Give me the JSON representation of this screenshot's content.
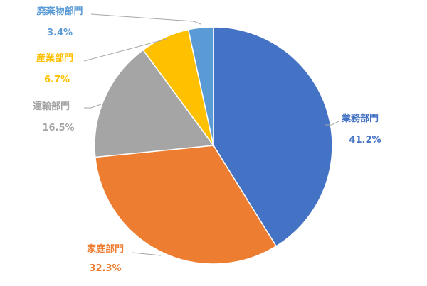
{
  "chart_data": {
    "type": "pie",
    "title": "",
    "start_angle_deg": 0,
    "direction": "clockwise",
    "slices": [
      {
        "name": "業務部門",
        "value": 41.2,
        "label": "41.2%",
        "color": "#4472C4"
      },
      {
        "name": "家庭部門",
        "value": 32.3,
        "label": "32.3%",
        "color": "#ED7D31"
      },
      {
        "name": "運輸部門",
        "value": 16.5,
        "label": "16.5%",
        "color": "#A5A5A5"
      },
      {
        "name": "産業部門",
        "value": 6.7,
        "label": "6.7%",
        "color": "#FFC000"
      },
      {
        "name": "廃棄物部門",
        "value": 3.4,
        "label": "3.4%",
        "color": "#5B9BD5"
      }
    ]
  }
}
